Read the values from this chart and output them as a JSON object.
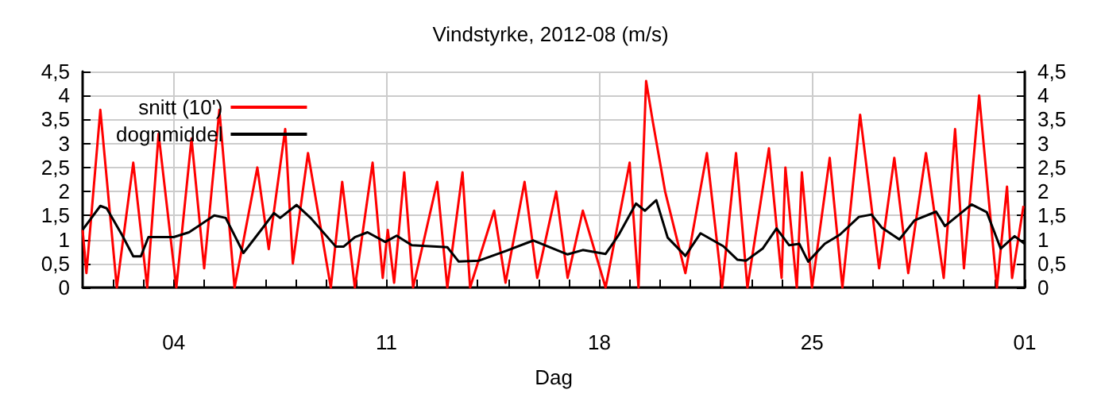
{
  "chart_data": {
    "type": "line",
    "title": "Vindstyrke, 2012-08 (m/s)",
    "xlabel": "Dag",
    "xlim": [
      "2012-08-01",
      "2012-09-01"
    ],
    "xticks": [
      {
        "value": "2012-08-02",
        "label": null
      },
      {
        "value": "2012-08-03",
        "label": null
      },
      {
        "value": "2012-08-04",
        "label": "04"
      },
      {
        "value": "2012-08-05",
        "label": null
      },
      {
        "value": "2012-08-06",
        "label": null
      },
      {
        "value": "2012-08-07",
        "label": null
      },
      {
        "value": "2012-08-08",
        "label": null
      },
      {
        "value": "2012-08-09",
        "label": null
      },
      {
        "value": "2012-08-10",
        "label": null
      },
      {
        "value": "2012-08-11",
        "label": "11"
      },
      {
        "value": "2012-08-12",
        "label": null
      },
      {
        "value": "2012-08-13",
        "label": null
      },
      {
        "value": "2012-08-14",
        "label": null
      },
      {
        "value": "2012-08-15",
        "label": null
      },
      {
        "value": "2012-08-16",
        "label": null
      },
      {
        "value": "2012-08-17",
        "label": null
      },
      {
        "value": "2012-08-18",
        "label": "18"
      },
      {
        "value": "2012-08-19",
        "label": null
      },
      {
        "value": "2012-08-20",
        "label": null
      },
      {
        "value": "2012-08-21",
        "label": null
      },
      {
        "value": "2012-08-22",
        "label": null
      },
      {
        "value": "2012-08-23",
        "label": null
      },
      {
        "value": "2012-08-24",
        "label": null
      },
      {
        "value": "2012-08-25",
        "label": "25"
      },
      {
        "value": "2012-08-26",
        "label": null
      },
      {
        "value": "2012-08-27",
        "label": null
      },
      {
        "value": "2012-08-28",
        "label": null
      },
      {
        "value": "2012-08-29",
        "label": null
      },
      {
        "value": "2012-08-30",
        "label": null
      },
      {
        "value": "2012-08-31",
        "label": null
      },
      {
        "value": "2012-09-01",
        "label": "01"
      }
    ],
    "ylim": [
      0,
      4.5
    ],
    "yticks": [
      0,
      {
        "value": 0.5,
        "label": "0,5"
      },
      1,
      {
        "value": 1.5,
        "label": "1,5"
      },
      2,
      {
        "value": 2.5,
        "label": "2,5"
      },
      3,
      {
        "value": 3.5,
        "label": "3,5"
      },
      4,
      {
        "value": 4.5,
        "label": "4,5"
      }
    ],
    "y2lim": [
      0,
      4.5
    ],
    "y2ticks": [
      0,
      {
        "value": 0.5,
        "label": "0,5"
      },
      1,
      {
        "value": 1.5,
        "label": "1,5"
      },
      2,
      {
        "value": 2.5,
        "label": "2,5"
      },
      3,
      {
        "value": 3.5,
        "label": "3,5"
      },
      4,
      {
        "value": 4.5,
        "label": "4,5"
      }
    ],
    "grid": true,
    "legend": "top left",
    "marker": "none",
    "line_style": "solid",
    "series": [
      {
        "name": "snitt (10')",
        "color": "#ff0000",
        "x": [
          "2012-08-01T00:00",
          "2012-08-01T03:00",
          "2012-08-01T14:00",
          "2012-08-02T03:00",
          "2012-08-02T16:00",
          "2012-08-03T03:00",
          "2012-08-03T12:00",
          "2012-08-04T02:00",
          "2012-08-04T14:00",
          "2012-08-05T00:00",
          "2012-08-05T12:00",
          "2012-08-06T00:00",
          "2012-08-06T18:00",
          "2012-08-07T03:00",
          "2012-08-07T16:00",
          "2012-08-07T22:00",
          "2012-08-08T10:00",
          "2012-08-09T04:00",
          "2012-08-09T13:00",
          "2012-08-09T23:00",
          "2012-08-10T13:00",
          "2012-08-10T21:00",
          "2012-08-11T01:00",
          "2012-08-11T06:00",
          "2012-08-11T14:00",
          "2012-08-11T21:00",
          "2012-08-12T16:00",
          "2012-08-13T00:00",
          "2012-08-13T12:00",
          "2012-08-13T18:00",
          "2012-08-14T13:00",
          "2012-08-14T22:00",
          "2012-08-15T13:00",
          "2012-08-15T23:00",
          "2012-08-16T14:00",
          "2012-08-16T23:00",
          "2012-08-17T11:00",
          "2012-08-18T05:00",
          "2012-08-19T00:00",
          "2012-08-19T07:00",
          "2012-08-19T13:00",
          "2012-08-19T18:00",
          "2012-08-20T04:00",
          "2012-08-20T20:00",
          "2012-08-21T13:00",
          "2012-08-22T01:00",
          "2012-08-22T12:00",
          "2012-08-22T21:00",
          "2012-08-23T14:00",
          "2012-08-24T00:00",
          "2012-08-24T03:00",
          "2012-08-24T12:00",
          "2012-08-24T16:00",
          "2012-08-25T00:00",
          "2012-08-25T14:00",
          "2012-08-26T00:00",
          "2012-08-26T14:00",
          "2012-08-27T05:00",
          "2012-08-27T17:00",
          "2012-08-28T04:00",
          "2012-08-28T18:00",
          "2012-08-29T08:00",
          "2012-08-29T17:00",
          "2012-08-30T00:00",
          "2012-08-30T12:00",
          "2012-08-31T02:00",
          "2012-08-31T10:00",
          "2012-08-31T14:00",
          "2012-08-31T23:00"
        ],
        "values": [
          1.2,
          0.3,
          3.7,
          0,
          2.6,
          0,
          3.2,
          0,
          3.1,
          0.4,
          3.7,
          0,
          2.5,
          0.8,
          3.3,
          0.5,
          2.8,
          0,
          2.2,
          0,
          2.6,
          0.2,
          1.2,
          0.1,
          2.4,
          0,
          2.2,
          0,
          2.4,
          0,
          1.6,
          0.1,
          2.2,
          0.2,
          2.0,
          0.2,
          1.6,
          0,
          2.6,
          0,
          4.3,
          3.5,
          2.0,
          0.3,
          2.8,
          0,
          2.8,
          0,
          2.9,
          0.2,
          2.5,
          0,
          2.4,
          0,
          2.7,
          0,
          3.6,
          0.4,
          2.7,
          0.3,
          2.8,
          0.2,
          3.3,
          0.4,
          4.0,
          0,
          2.1,
          0.2,
          1.7
        ]
      },
      {
        "name": "dognmiddel",
        "color": "#000000",
        "x": [
          "2012-08-01T00:00",
          "2012-08-01T14:00",
          "2012-08-01T19:00",
          "2012-08-02T07:00",
          "2012-08-02T16:00",
          "2012-08-02T22:00",
          "2012-08-03T04:00",
          "2012-08-04T00:00",
          "2012-08-04T12:00",
          "2012-08-05T08:00",
          "2012-08-05T17:00",
          "2012-08-06T07:00",
          "2012-08-06T21:00",
          "2012-08-07T07:00",
          "2012-08-07T12:00",
          "2012-08-08T01:00",
          "2012-08-08T12:00",
          "2012-08-09T08:00",
          "2012-08-09T14:00",
          "2012-08-09T23:00",
          "2012-08-10T09:00",
          "2012-08-10T23:00",
          "2012-08-11T08:00",
          "2012-08-11T20:00",
          "2012-08-13T00:00",
          "2012-08-13T09:00",
          "2012-08-14T01:00",
          "2012-08-14T22:00",
          "2012-08-15T20:00",
          "2012-08-16T23:00",
          "2012-08-17T11:00",
          "2012-08-18T05:00",
          "2012-08-18T15:00",
          "2012-08-19T05:00",
          "2012-08-19T12:00",
          "2012-08-19T21:00",
          "2012-08-20T06:00",
          "2012-08-20T20:00",
          "2012-08-21T08:00",
          "2012-08-22T02:00",
          "2012-08-22T13:00",
          "2012-08-22T20:00",
          "2012-08-23T09:00",
          "2012-08-23T20:00",
          "2012-08-24T06:00",
          "2012-08-24T14:00",
          "2012-08-24T21:00",
          "2012-08-25T10:00",
          "2012-08-25T22:00",
          "2012-08-26T13:00",
          "2012-08-26T23:00",
          "2012-08-27T07:00",
          "2012-08-27T21:00",
          "2012-08-28T09:00",
          "2012-08-29T02:00",
          "2012-08-29T09:00",
          "2012-08-30T06:00",
          "2012-08-30T18:00",
          "2012-08-31T05:00",
          "2012-08-31T16:00",
          "2012-09-01T00:00"
        ],
        "values": [
          1.2,
          1.7,
          1.65,
          1.1,
          0.65,
          0.65,
          1.05,
          1.05,
          1.15,
          1.5,
          1.45,
          0.72,
          1.2,
          1.55,
          1.45,
          1.72,
          1.45,
          0.85,
          0.85,
          1.05,
          1.15,
          0.95,
          1.08,
          0.88,
          0.84,
          0.54,
          0.56,
          0.76,
          0.98,
          0.69,
          0.78,
          0.7,
          1.08,
          1.75,
          1.6,
          1.82,
          1.04,
          0.66,
          1.13,
          0.86,
          0.58,
          0.56,
          0.81,
          1.23,
          0.88,
          0.91,
          0.54,
          0.91,
          1.1,
          1.47,
          1.52,
          1.25,
          1.0,
          1.4,
          1.58,
          1.28,
          1.73,
          1.57,
          0.81,
          1.07,
          0.91
        ]
      }
    ]
  }
}
